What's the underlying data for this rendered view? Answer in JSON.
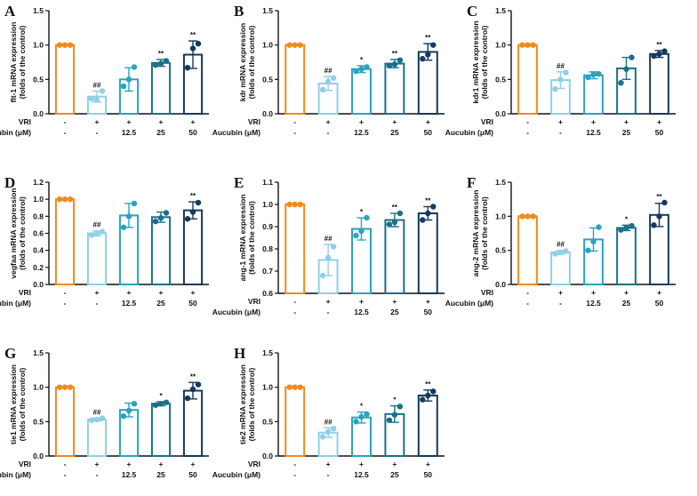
{
  "figure": {
    "colors": {
      "ctrl": "#f08a1c",
      "vri": "#8fd0e6",
      "a125": "#2aa3bf",
      "a25": "#1b6f88",
      "a50": "#143a5c"
    }
  },
  "chart_data": [
    {
      "panel": "A",
      "type": "bar",
      "ylabel": [
        "flt-1 mRNA expression",
        "(folds of the control)"
      ],
      "ylim": [
        0,
        1.5
      ],
      "yticks": [
        "0.0",
        "0.5",
        "1.0",
        "1.5"
      ],
      "vri": [
        "-",
        "+",
        "+",
        "+",
        "+"
      ],
      "aucubin": [
        "-",
        "-",
        "12.5",
        "25",
        "50"
      ],
      "vri_label": "VRI",
      "aucubin_label": "Aucubin (μM)",
      "values": [
        1.0,
        0.25,
        0.5,
        0.74,
        0.86
      ],
      "errors": [
        0,
        0.08,
        0.17,
        0.05,
        0.2
      ],
      "points": [
        [
          1.0,
          1.0,
          1.0
        ],
        [
          0.22,
          0.2,
          0.33
        ],
        [
          0.4,
          0.5,
          0.68
        ],
        [
          0.71,
          0.73,
          0.77
        ],
        [
          0.67,
          0.95,
          1.02
        ]
      ],
      "sig": [
        "",
        "##",
        "",
        "**",
        "**"
      ]
    },
    {
      "panel": "B",
      "type": "bar",
      "ylabel": [
        "kdr mRNA expression",
        "(folds of the control)"
      ],
      "ylim": [
        0,
        1.5
      ],
      "yticks": [
        "0.0",
        "0.5",
        "1.0",
        "1.5"
      ],
      "vri": [
        "-",
        "+",
        "+",
        "+",
        "+"
      ],
      "aucubin": [
        "-",
        "-",
        "12.5",
        "25",
        "50"
      ],
      "vri_label": "VRI",
      "aucubin_label": "Aucubin (μM)",
      "values": [
        1.0,
        0.44,
        0.65,
        0.73,
        0.9
      ],
      "errors": [
        0,
        0.1,
        0.05,
        0.06,
        0.12
      ],
      "points": [
        [
          1.0,
          1.0,
          1.0
        ],
        [
          0.35,
          0.47,
          0.52
        ],
        [
          0.62,
          0.65,
          0.68
        ],
        [
          0.7,
          0.72,
          0.78
        ],
        [
          0.8,
          0.86,
          1.0
        ]
      ],
      "sig": [
        "",
        "##",
        "*",
        "**",
        "**"
      ]
    },
    {
      "panel": "C",
      "type": "bar",
      "ylabel": [
        "kdr1 mRNA expression",
        "(folds of the control)"
      ],
      "ylim": [
        0,
        1.5
      ],
      "yticks": [
        "0.0",
        "0.5",
        "1.0",
        "1.5"
      ],
      "vri": [
        "-",
        "+",
        "+",
        "+",
        "+"
      ],
      "aucubin": [
        "-",
        "-",
        "12.5",
        "25",
        "50"
      ],
      "vri_label": "VRI",
      "aucubin_label": "Aucubin (μM)",
      "values": [
        1.0,
        0.49,
        0.56,
        0.66,
        0.87
      ],
      "errors": [
        0,
        0.12,
        0.05,
        0.16,
        0.05
      ],
      "points": [
        [
          1.0,
          1.0,
          1.0
        ],
        [
          0.36,
          0.5,
          0.6
        ],
        [
          0.53,
          0.57,
          0.58
        ],
        [
          0.45,
          0.65,
          0.82
        ],
        [
          0.84,
          0.87,
          0.91
        ]
      ],
      "sig": [
        "",
        "##",
        "",
        "",
        "**"
      ]
    },
    {
      "panel": "D",
      "type": "bar",
      "ylabel": [
        "vegfaa mRNA expression",
        "(folds of the control)"
      ],
      "ylim": [
        0,
        1.2
      ],
      "yticks": [
        "0.0",
        "0.2",
        "0.4",
        "0.6",
        "0.8",
        "1.0",
        "1.2"
      ],
      "vri": [
        "-",
        "+",
        "+",
        "+",
        "+"
      ],
      "aucubin": [
        "-",
        "-",
        "12.5",
        "25",
        "50"
      ],
      "vri_label": "VRI",
      "aucubin_label": "Aucubin (μM)",
      "values": [
        1.0,
        0.6,
        0.81,
        0.79,
        0.87
      ],
      "errors": [
        0,
        0.03,
        0.14,
        0.06,
        0.1
      ],
      "points": [
        [
          1.0,
          1.0,
          1.0
        ],
        [
          0.58,
          0.6,
          0.62
        ],
        [
          0.67,
          0.8,
          0.95
        ],
        [
          0.74,
          0.78,
          0.84
        ],
        [
          0.77,
          0.85,
          0.96
        ]
      ],
      "sig": [
        "",
        "##",
        "",
        "",
        "**"
      ]
    },
    {
      "panel": "E",
      "type": "bar",
      "ylabel": [
        "ang-1 mRNA expression",
        "(folds of the control)"
      ],
      "ylim": [
        0.6,
        1.1
      ],
      "yticks": [
        "0.6",
        "0.7",
        "0.8",
        "0.9",
        "1.0",
        "1.1"
      ],
      "vri": [
        "-",
        "+",
        "+",
        "+",
        "+"
      ],
      "aucubin": [
        "-",
        "-",
        "12.5",
        "25",
        "50"
      ],
      "vri_label": "VRI",
      "aucubin_label": "Aucubin (μM)",
      "values": [
        1.0,
        0.75,
        0.89,
        0.93,
        0.96
      ],
      "errors": [
        0,
        0.07,
        0.05,
        0.03,
        0.03
      ],
      "points": [
        [
          1.0,
          1.0,
          1.0
        ],
        [
          0.68,
          0.76,
          0.81
        ],
        [
          0.86,
          0.88,
          0.94
        ],
        [
          0.91,
          0.92,
          0.96
        ],
        [
          0.93,
          0.96,
          0.99
        ]
      ],
      "sig": [
        "",
        "##",
        "*",
        "**",
        "**"
      ]
    },
    {
      "panel": "F",
      "type": "bar",
      "ylabel": [
        "ang-2 mRNA expression",
        "(folds of the control)"
      ],
      "ylim": [
        0,
        1.5
      ],
      "yticks": [
        "0.0",
        "0.5",
        "1.0",
        "1.5"
      ],
      "vri": [
        "-",
        "+",
        "+",
        "+",
        "+"
      ],
      "aucubin": [
        "-",
        "-",
        "12.5",
        "25",
        "50"
      ],
      "vri_label": "VRI",
      "aucubin_label": "Aucubin (μM)",
      "values": [
        1.0,
        0.47,
        0.66,
        0.83,
        1.02
      ],
      "errors": [
        0,
        0.03,
        0.17,
        0.04,
        0.17
      ],
      "points": [
        [
          1.0,
          1.0,
          1.0
        ],
        [
          0.45,
          0.47,
          0.49
        ],
        [
          0.5,
          0.63,
          0.84
        ],
        [
          0.8,
          0.83,
          0.86
        ],
        [
          0.87,
          1.0,
          1.2
        ]
      ],
      "sig": [
        "",
        "##",
        "",
        "*",
        "**"
      ]
    },
    {
      "panel": "G",
      "type": "bar",
      "ylabel": [
        "tie1 mRNA expression",
        "(folds of the control)"
      ],
      "ylim": [
        0,
        1.5
      ],
      "yticks": [
        "0.0",
        "0.5",
        "1.0",
        "1.5"
      ],
      "vri": [
        "-",
        "+",
        "+",
        "+",
        "+"
      ],
      "aucubin": [
        "-",
        "-",
        "12.5",
        "25",
        "50"
      ],
      "vri_label": "VRI",
      "aucubin_label": "Aucubin (μM)",
      "values": [
        1.0,
        0.53,
        0.67,
        0.76,
        0.95
      ],
      "errors": [
        0,
        0.02,
        0.1,
        0.03,
        0.12
      ],
      "points": [
        [
          1.0,
          1.0,
          1.0
        ],
        [
          0.52,
          0.53,
          0.55
        ],
        [
          0.58,
          0.66,
          0.76
        ],
        [
          0.74,
          0.76,
          0.78
        ],
        [
          0.84,
          0.97,
          1.04
        ]
      ],
      "sig": [
        "",
        "##",
        "",
        "*",
        "**"
      ]
    },
    {
      "panel": "H",
      "type": "bar",
      "ylabel": [
        "tie2 mRNA expression",
        "(folds of the control)"
      ],
      "ylim": [
        0,
        1.5
      ],
      "yticks": [
        "0.0",
        "0.5",
        "1.0",
        "1.5"
      ],
      "vri": [
        "-",
        "+",
        "+",
        "+",
        "+"
      ],
      "aucubin": [
        "-",
        "-",
        "12.5",
        "25",
        "50"
      ],
      "vri_label": "VRI",
      "aucubin_label": "Aucubin (μM)",
      "values": [
        1.0,
        0.34,
        0.56,
        0.61,
        0.88
      ],
      "errors": [
        0,
        0.07,
        0.08,
        0.12,
        0.08
      ],
      "points": [
        [
          1.0,
          1.0,
          1.0
        ],
        [
          0.28,
          0.35,
          0.4
        ],
        [
          0.5,
          0.57,
          0.61
        ],
        [
          0.52,
          0.6,
          0.72
        ],
        [
          0.82,
          0.88,
          0.94
        ]
      ],
      "sig": [
        "",
        "##",
        "*",
        "*",
        "**"
      ]
    }
  ]
}
